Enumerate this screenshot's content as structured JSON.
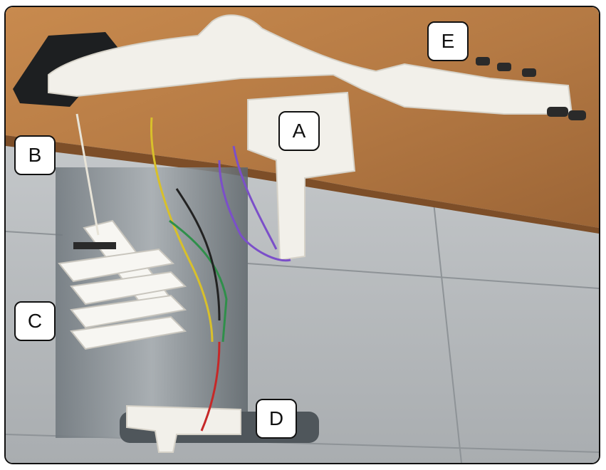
{
  "labels": {
    "A": "A",
    "B": "B",
    "C": "C",
    "D": "D",
    "E": "E"
  },
  "colors": {
    "table_wood": "#b57a44",
    "floor_tile": "#b9bcbf",
    "plastic_white": "#f2f0ea",
    "wire_purple": "#7b4fc9",
    "wire_yellow": "#d8c02b",
    "wire_green": "#2f8f4a",
    "wire_red": "#c62828"
  }
}
